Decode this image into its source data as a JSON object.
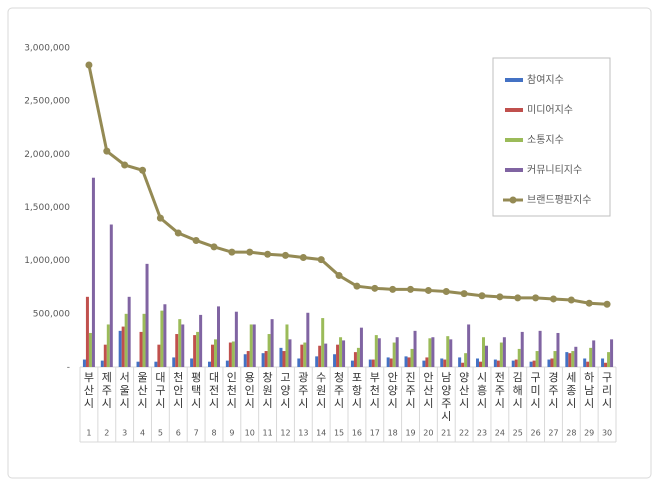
{
  "chart_data": {
    "type": "bar_line",
    "categories": [
      "부산시",
      "제주시",
      "서울시",
      "울산시",
      "대구시",
      "천안시",
      "평택시",
      "대전시",
      "인천시",
      "용인시",
      "창원시",
      "고양시",
      "광주시",
      "수원시",
      "청주시",
      "포항시",
      "부천시",
      "안양시",
      "진주시",
      "안산시",
      "남양주시",
      "양산시",
      "시흥시",
      "전주시",
      "김해시",
      "구미시",
      "경주시",
      "세종시",
      "하남시",
      "구리시"
    ],
    "ranks": [
      1,
      2,
      3,
      4,
      5,
      6,
      7,
      8,
      9,
      10,
      11,
      12,
      13,
      14,
      15,
      16,
      17,
      18,
      19,
      20,
      21,
      22,
      23,
      24,
      25,
      26,
      27,
      28,
      29,
      30
    ],
    "series": [
      {
        "name": "참여지수",
        "type": "bar",
        "color": "#4472c4",
        "values": [
          70000,
          60000,
          340000,
          50000,
          50000,
          90000,
          80000,
          50000,
          60000,
          120000,
          130000,
          180000,
          80000,
          100000,
          120000,
          60000,
          70000,
          90000,
          100000,
          60000,
          80000,
          90000,
          80000,
          70000,
          60000,
          50000,
          70000,
          140000,
          80000,
          80000
        ]
      },
      {
        "name": "미디어지수",
        "type": "bar",
        "color": "#c0504d",
        "values": [
          660000,
          210000,
          380000,
          330000,
          210000,
          310000,
          300000,
          210000,
          230000,
          150000,
          150000,
          150000,
          210000,
          200000,
          210000,
          140000,
          70000,
          80000,
          90000,
          90000,
          70000,
          40000,
          50000,
          60000,
          70000,
          60000,
          80000,
          130000,
          50000,
          40000
        ]
      },
      {
        "name": "소통지수",
        "type": "bar",
        "color": "#9bbb59",
        "values": [
          320000,
          400000,
          500000,
          500000,
          530000,
          450000,
          330000,
          260000,
          240000,
          400000,
          310000,
          400000,
          230000,
          460000,
          280000,
          180000,
          300000,
          230000,
          170000,
          270000,
          290000,
          130000,
          280000,
          230000,
          170000,
          150000,
          150000,
          150000,
          180000,
          140000
        ]
      },
      {
        "name": "커뮤니티지수",
        "type": "bar",
        "color": "#8064a2",
        "values": [
          1780000,
          1340000,
          660000,
          970000,
          590000,
          400000,
          490000,
          570000,
          520000,
          400000,
          450000,
          260000,
          510000,
          220000,
          250000,
          370000,
          270000,
          280000,
          340000,
          280000,
          260000,
          400000,
          200000,
          280000,
          330000,
          340000,
          320000,
          190000,
          250000,
          260000
        ]
      },
      {
        "name": "브랜드평판지수",
        "type": "line",
        "color": "#948a54",
        "values": [
          2840000,
          2030000,
          1900000,
          1850000,
          1400000,
          1260000,
          1190000,
          1130000,
          1080000,
          1080000,
          1060000,
          1050000,
          1030000,
          1010000,
          860000,
          760000,
          740000,
          730000,
          730000,
          720000,
          710000,
          690000,
          670000,
          660000,
          650000,
          650000,
          640000,
          630000,
          600000,
          590000
        ]
      }
    ],
    "ylim": [
      0,
      3000000
    ],
    "yticks": [
      {
        "value": 0,
        "label": "-"
      },
      {
        "value": 500000,
        "label": "500,000"
      },
      {
        "value": 1000000,
        "label": "1,000,000"
      },
      {
        "value": 1500000,
        "label": "1,500,000"
      },
      {
        "value": 2000000,
        "label": "2,000,000"
      },
      {
        "value": 2500000,
        "label": "2,500,000"
      },
      {
        "value": 3000000,
        "label": "3,000,000"
      }
    ],
    "legend": "right"
  }
}
